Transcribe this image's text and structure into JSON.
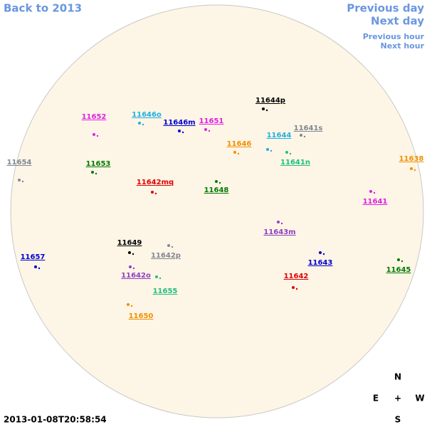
{
  "navigation": {
    "back": "Back to 2013",
    "previous_day": "Previous day",
    "next_day": "Next day",
    "previous_hour": "Previous hour",
    "next_hour": "Next hour"
  },
  "regions": [
    {
      "label": "11652",
      "color": "#e020e0"
    },
    {
      "label": "11646o",
      "color": "#20b0e0"
    },
    {
      "label": "11651",
      "color": "#e020e0"
    },
    {
      "label": "11646m",
      "color": "#0000d0"
    },
    {
      "label": "11644p",
      "color": "#000000"
    },
    {
      "label": "11641s",
      "color": "#808890"
    },
    {
      "label": "11644",
      "color": "#20b0e0"
    },
    {
      "label": "11646",
      "color": "#f09000"
    },
    {
      "label": "11654",
      "color": "#808890"
    },
    {
      "label": "11653",
      "color": "#007a00"
    },
    {
      "label": "11641n",
      "color": "#20c080"
    },
    {
      "label": "11638",
      "color": "#f09000"
    },
    {
      "label": "11642mq",
      "color": "#e00000"
    },
    {
      "label": "11648",
      "color": "#007a00"
    },
    {
      "label": "11641",
      "color": "#e020e0"
    },
    {
      "label": "11643m",
      "color": "#9040c0"
    },
    {
      "label": "11649",
      "color": "#000000"
    },
    {
      "label": "11642p",
      "color": "#808890"
    },
    {
      "label": "11657",
      "color": "#0000d0"
    },
    {
      "label": "11643",
      "color": "#0000d0"
    },
    {
      "label": "11645",
      "color": "#007a00"
    },
    {
      "label": "11642o",
      "color": "#9040c0"
    },
    {
      "label": "11642",
      "color": "#e00000"
    },
    {
      "label": "11655",
      "color": "#20c080"
    },
    {
      "label": "11650",
      "color": "#f09000"
    }
  ],
  "compass": {
    "north": "N",
    "east": "E",
    "center": "+",
    "west": "W",
    "south": "S"
  },
  "timestamp": "2013-01-08T20:58:54"
}
